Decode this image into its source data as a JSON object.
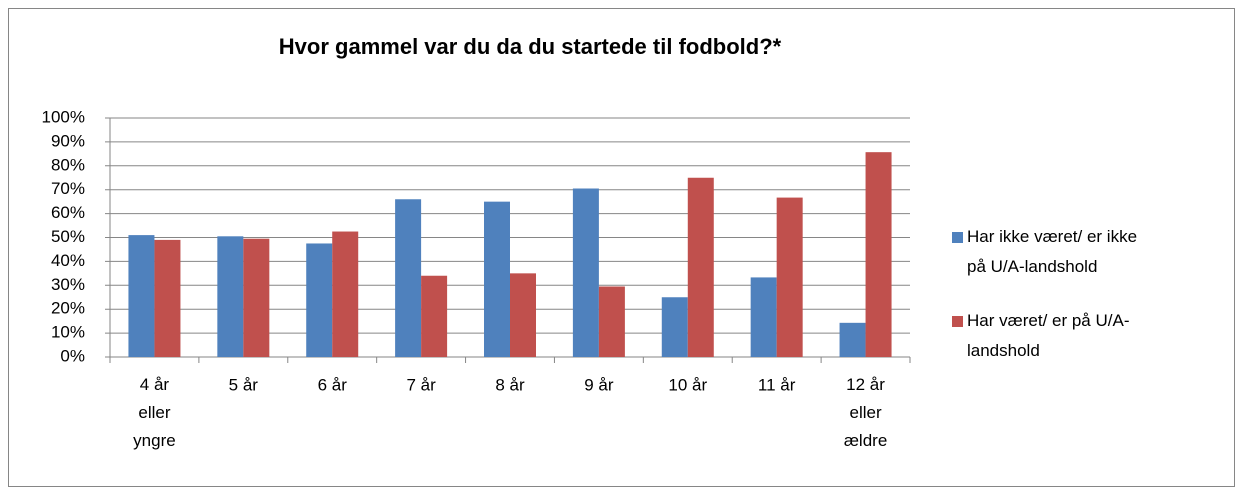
{
  "chart_data": {
    "type": "bar",
    "title": "Hvor gammel var du da du startede til fodbold?*",
    "categories": [
      "4 år\neller\nyngre",
      "5 år",
      "6 år",
      "7 år",
      "8 år",
      "9 år",
      "10 år",
      "11 år",
      "12 år\neller\nældre"
    ],
    "series": [
      {
        "name": "Har ikke været/ er ikke\npå U/A-landshold",
        "color": "#4f81bd",
        "values": [
          51,
          50.5,
          47.5,
          66,
          65,
          70.5,
          25,
          33.3,
          14.3
        ]
      },
      {
        "name": "Har været/ er på U/A-\nlandshold",
        "color": "#c0504d",
        "values": [
          49,
          49.5,
          52.5,
          34,
          35,
          29.5,
          75,
          66.7,
          85.7
        ]
      }
    ],
    "ylim": [
      0,
      100
    ],
    "yticks": [
      {
        "value": 0,
        "label": "0%"
      },
      {
        "value": 10,
        "label": "10%"
      },
      {
        "value": 20,
        "label": "20%"
      },
      {
        "value": 30,
        "label": "30%"
      },
      {
        "value": 40,
        "label": "40%"
      },
      {
        "value": 50,
        "label": "50%"
      },
      {
        "value": 60,
        "label": "60%"
      },
      {
        "value": 70,
        "label": "70%"
      },
      {
        "value": 80,
        "label": "80%"
      },
      {
        "value": 90,
        "label": "90%"
      },
      {
        "value": 100,
        "label": "100%"
      }
    ],
    "grid": true,
    "legend": "right"
  }
}
